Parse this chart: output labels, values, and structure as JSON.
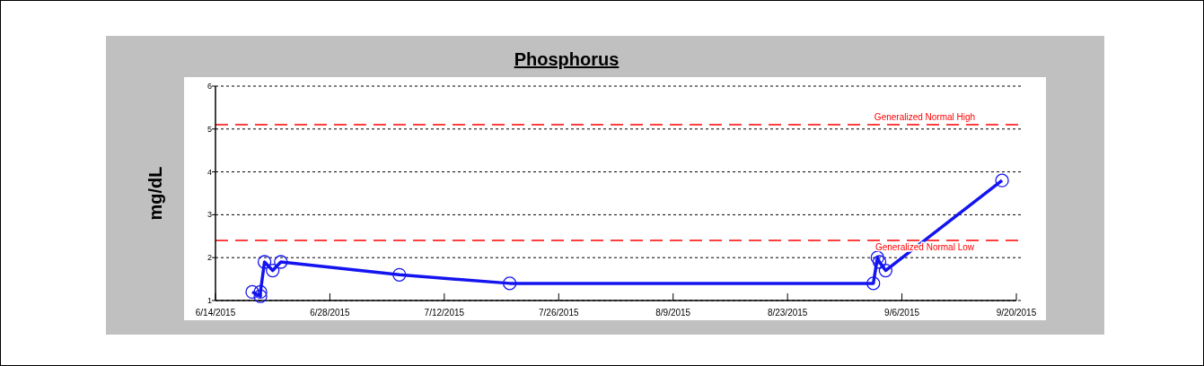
{
  "chart_data": {
    "type": "line",
    "title": "Phosphorus",
    "ylabel": "mg/dL",
    "x": [
      "2015-06-18T12:00",
      "2015-06-19T12:00",
      "2015-06-19T12:00",
      "2015-06-20",
      "2015-06-21",
      "2015-06-22",
      "2015-07-06T12:00",
      "2015-07-20",
      "2015-09-02T12:00",
      "2015-09-03",
      "2015-09-03T06:00",
      "2015-09-04",
      "2015-09-18T06:00"
    ],
    "series": [
      {
        "color": "#1414f0",
        "values": [
          1.2,
          1.1,
          1.2,
          1.9,
          1.7,
          1.9,
          1.6,
          1.4,
          1.4,
          2.0,
          1.9,
          1.7,
          3.8
        ]
      }
    ],
    "xlim": [
      "2015-06-14",
      "2015-09-20"
    ],
    "xticks": [
      {
        "value": "2015-06-14",
        "label": "6/14/2015"
      },
      {
        "value": "2015-06-28",
        "label": "6/28/2015"
      },
      {
        "value": "2015-07-12",
        "label": "7/12/2015"
      },
      {
        "value": "2015-07-26",
        "label": "7/26/2015"
      },
      {
        "value": "2015-08-09",
        "label": "8/9/2015"
      },
      {
        "value": "2015-08-23",
        "label": "8/23/2015"
      },
      {
        "value": "2015-09-06",
        "label": "9/6/2015"
      },
      {
        "value": "2015-09-20",
        "label": "9/20/2015"
      }
    ],
    "ylim": [
      1,
      6
    ],
    "yticks": [
      1,
      2,
      3,
      4,
      5,
      6
    ],
    "ref_lines": [
      {
        "axis": "y",
        "value": 5.1,
        "label": "Generalized Normal High",
        "color": "#ff0000",
        "line_style": "dashed"
      },
      {
        "axis": "y",
        "value": 2.4,
        "label": "Generalized Normal Low",
        "color": "#ff0000",
        "line_style": "dashed"
      }
    ],
    "grid": "y",
    "marker": "circle",
    "line_style": "solid"
  }
}
